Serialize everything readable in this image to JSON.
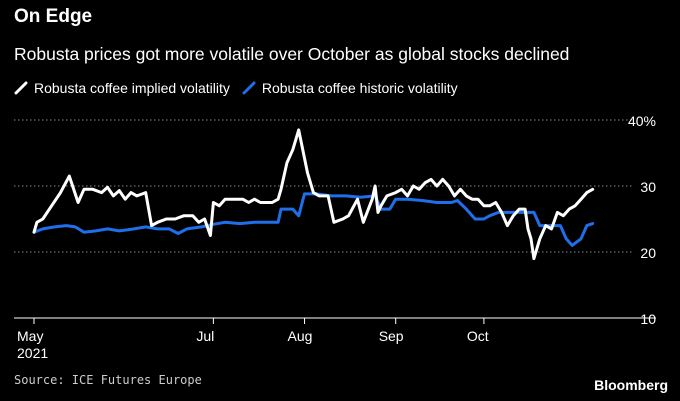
{
  "header": {
    "title": "On Edge",
    "subtitle": "Robusta prices got more volatile over October as global stocks declined"
  },
  "footer": {
    "source": "Source: ICE Futures Europe",
    "brand": "Bloomberg"
  },
  "colors": {
    "background": "#000000",
    "implied": "#ffffff",
    "historic": "#1f6fea",
    "grid": "#8a8a8a",
    "text": "#ffffff"
  },
  "chart_data": {
    "type": "line",
    "title": "On Edge",
    "subtitle": "Robusta prices got more volatile over October as global stocks declined",
    "xlabel": "",
    "ylabel": "",
    "ylim": [
      10,
      40
    ],
    "yticks": [
      10,
      20,
      30,
      40
    ],
    "ytick_labels": [
      "10",
      "20",
      "30",
      "40%"
    ],
    "grid": true,
    "legend": "top-left",
    "x_labels": [
      {
        "date": "2021-05-01",
        "label": "May",
        "sublabel": "2021"
      },
      {
        "date": "2021-07-01",
        "label": "Jul",
        "sublabel": ""
      },
      {
        "date": "2021-08-01",
        "label": "Aug",
        "sublabel": ""
      },
      {
        "date": "2021-09-01",
        "label": "Sep",
        "sublabel": ""
      },
      {
        "date": "2021-10-01",
        "label": "Oct",
        "sublabel": ""
      }
    ],
    "x_range": [
      "2021-05-01",
      "2021-11-19"
    ],
    "series": [
      {
        "name": "Robusta coffee implied volatility",
        "points": [
          [
            "2021-05-01",
            23.0
          ],
          [
            "2021-05-02",
            24.5
          ],
          [
            "2021-05-04",
            25.0
          ],
          [
            "2021-05-07",
            27.0
          ],
          [
            "2021-05-10",
            29.0
          ],
          [
            "2021-05-13",
            31.5
          ],
          [
            "2021-05-16",
            27.5
          ],
          [
            "2021-05-18",
            29.5
          ],
          [
            "2021-05-21",
            29.5
          ],
          [
            "2021-05-24",
            29.0
          ],
          [
            "2021-05-26",
            29.8
          ],
          [
            "2021-05-28",
            28.5
          ],
          [
            "2021-05-30",
            29.3
          ],
          [
            "2021-06-01",
            28.0
          ],
          [
            "2021-06-03",
            29.0
          ],
          [
            "2021-06-05",
            28.5
          ],
          [
            "2021-06-08",
            29.0
          ],
          [
            "2021-06-10",
            24.0
          ],
          [
            "2021-06-12",
            24.5
          ],
          [
            "2021-06-15",
            25.0
          ],
          [
            "2021-06-18",
            25.0
          ],
          [
            "2021-06-21",
            25.5
          ],
          [
            "2021-06-24",
            25.5
          ],
          [
            "2021-06-26",
            24.5
          ],
          [
            "2021-06-28",
            25.0
          ],
          [
            "2021-06-30",
            22.5
          ],
          [
            "2021-07-01",
            27.5
          ],
          [
            "2021-07-03",
            27.0
          ],
          [
            "2021-07-05",
            28.0
          ],
          [
            "2021-07-08",
            28.0
          ],
          [
            "2021-07-11",
            28.0
          ],
          [
            "2021-07-13",
            27.5
          ],
          [
            "2021-07-15",
            28.0
          ],
          [
            "2021-07-17",
            27.5
          ],
          [
            "2021-07-19",
            27.5
          ],
          [
            "2021-07-21",
            27.5
          ],
          [
            "2021-07-23",
            28.0
          ],
          [
            "2021-07-24",
            29.5
          ],
          [
            "2021-07-26",
            33.5
          ],
          [
            "2021-07-28",
            35.5
          ],
          [
            "2021-07-30",
            38.5
          ],
          [
            "2021-08-02",
            32.0
          ],
          [
            "2021-08-04",
            29.0
          ],
          [
            "2021-08-06",
            28.5
          ],
          [
            "2021-08-09",
            28.5
          ],
          [
            "2021-08-11",
            24.5
          ],
          [
            "2021-08-14",
            25.0
          ],
          [
            "2021-08-16",
            25.5
          ],
          [
            "2021-08-19",
            28.0
          ],
          [
            "2021-08-21",
            24.5
          ],
          [
            "2021-08-24",
            28.0
          ],
          [
            "2021-08-25",
            30.0
          ],
          [
            "2021-08-26",
            26.0
          ],
          [
            "2021-08-27",
            27.0
          ],
          [
            "2021-08-29",
            28.5
          ],
          [
            "2021-09-01",
            29.0
          ],
          [
            "2021-09-03",
            29.5
          ],
          [
            "2021-09-05",
            28.5
          ],
          [
            "2021-09-07",
            30.0
          ],
          [
            "2021-09-09",
            29.5
          ],
          [
            "2021-09-11",
            30.5
          ],
          [
            "2021-09-13",
            31.0
          ],
          [
            "2021-09-15",
            30.0
          ],
          [
            "2021-09-17",
            31.0
          ],
          [
            "2021-09-19",
            30.0
          ],
          [
            "2021-09-21",
            28.5
          ],
          [
            "2021-09-23",
            29.5
          ],
          [
            "2021-09-25",
            28.5
          ],
          [
            "2021-09-27",
            28.0
          ],
          [
            "2021-09-29",
            28.0
          ],
          [
            "2021-10-01",
            27.0
          ],
          [
            "2021-10-03",
            27.0
          ],
          [
            "2021-10-05",
            27.5
          ],
          [
            "2021-10-07",
            26.0
          ],
          [
            "2021-10-09",
            24.0
          ],
          [
            "2021-10-11",
            25.5
          ],
          [
            "2021-10-13",
            26.5
          ],
          [
            "2021-10-15",
            26.5
          ],
          [
            "2021-10-16",
            23.5
          ],
          [
            "2021-10-17",
            22.0
          ],
          [
            "2021-10-18",
            19.0
          ],
          [
            "2021-10-20",
            22.0
          ],
          [
            "2021-10-22",
            24.0
          ],
          [
            "2021-10-24",
            23.5
          ],
          [
            "2021-10-26",
            26.0
          ],
          [
            "2021-10-28",
            25.5
          ],
          [
            "2021-10-30",
            26.5
          ],
          [
            "2021-11-01",
            27.0
          ],
          [
            "2021-11-03",
            28.0
          ],
          [
            "2021-11-05",
            29.0
          ],
          [
            "2021-11-07",
            29.5
          ]
        ]
      },
      {
        "name": "Robusta coffee historic volatility",
        "points": [
          [
            "2021-05-01",
            23.0
          ],
          [
            "2021-05-04",
            23.5
          ],
          [
            "2021-05-08",
            23.8
          ],
          [
            "2021-05-12",
            24.0
          ],
          [
            "2021-05-15",
            23.8
          ],
          [
            "2021-05-18",
            23.0
          ],
          [
            "2021-05-22",
            23.2
          ],
          [
            "2021-05-26",
            23.5
          ],
          [
            "2021-05-30",
            23.2
          ],
          [
            "2021-06-04",
            23.5
          ],
          [
            "2021-06-08",
            23.8
          ],
          [
            "2021-06-12",
            23.5
          ],
          [
            "2021-06-16",
            23.5
          ],
          [
            "2021-06-19",
            22.8
          ],
          [
            "2021-06-22",
            23.5
          ],
          [
            "2021-06-27",
            23.8
          ],
          [
            "2021-07-01",
            24.2
          ],
          [
            "2021-07-05",
            24.5
          ],
          [
            "2021-07-10",
            24.3
          ],
          [
            "2021-07-15",
            24.5
          ],
          [
            "2021-07-20",
            24.5
          ],
          [
            "2021-07-23",
            24.5
          ],
          [
            "2021-07-24",
            26.5
          ],
          [
            "2021-07-28",
            26.5
          ],
          [
            "2021-07-30",
            25.5
          ],
          [
            "2021-08-01",
            28.8
          ],
          [
            "2021-08-05",
            28.8
          ],
          [
            "2021-08-10",
            28.5
          ],
          [
            "2021-08-15",
            28.5
          ],
          [
            "2021-08-20",
            28.3
          ],
          [
            "2021-08-25",
            28.5
          ],
          [
            "2021-08-27",
            26.5
          ],
          [
            "2021-08-30",
            26.5
          ],
          [
            "2021-09-01",
            28.0
          ],
          [
            "2021-09-05",
            28.0
          ],
          [
            "2021-09-10",
            27.8
          ],
          [
            "2021-09-15",
            27.5
          ],
          [
            "2021-09-20",
            27.5
          ],
          [
            "2021-09-22",
            27.8
          ],
          [
            "2021-09-25",
            26.5
          ],
          [
            "2021-09-28",
            25.0
          ],
          [
            "2021-10-01",
            25.0
          ],
          [
            "2021-10-03",
            25.5
          ],
          [
            "2021-10-06",
            26.0
          ],
          [
            "2021-10-10",
            26.0
          ],
          [
            "2021-10-15",
            26.0
          ],
          [
            "2021-10-18",
            26.0
          ],
          [
            "2021-10-20",
            24.0
          ],
          [
            "2021-10-24",
            24.0
          ],
          [
            "2021-10-27",
            24.0
          ],
          [
            "2021-10-29",
            22.0
          ],
          [
            "2021-10-31",
            21.0
          ],
          [
            "2021-11-03",
            22.0
          ],
          [
            "2021-11-05",
            24.0
          ],
          [
            "2021-11-07",
            24.3
          ]
        ]
      }
    ]
  }
}
